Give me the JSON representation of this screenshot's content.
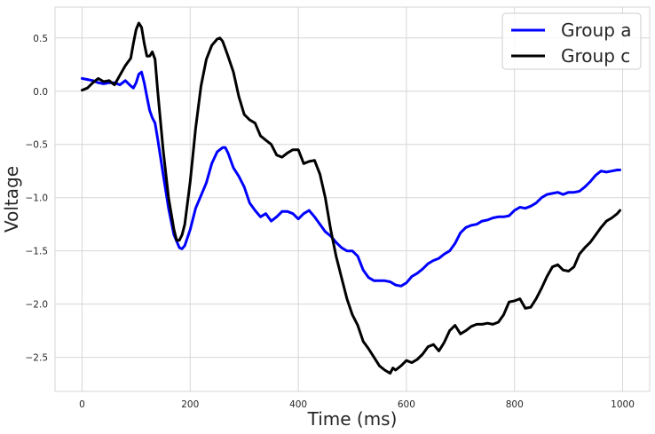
{
  "chart_data": {
    "type": "line",
    "title": "",
    "xlabel": "Time (ms)",
    "ylabel": "Voltage",
    "xlim": [
      -50,
      1050
    ],
    "ylim": [
      -2.82,
      0.79
    ],
    "xticks": [
      0,
      200,
      400,
      600,
      800,
      1000
    ],
    "yticks": [
      -2.5,
      -2.0,
      -1.5,
      -1.0,
      -0.5,
      0.0,
      0.5
    ],
    "xtick_labels": [
      "0",
      "200",
      "400",
      "600",
      "800",
      "1000"
    ],
    "ytick_labels": [
      "−2.5",
      "−2.0",
      "−1.5",
      "−1.0",
      "−0.5",
      "0.0",
      "0.5"
    ],
    "grid": true,
    "legend_position": "top-right",
    "series": [
      {
        "name": "Group a",
        "color": "#0000ff",
        "x": [
          0,
          10,
          20,
          30,
          40,
          50,
          60,
          70,
          80,
          90,
          95,
          100,
          105,
          110,
          115,
          120,
          125,
          130,
          135,
          140,
          150,
          160,
          170,
          180,
          185,
          190,
          200,
          210,
          220,
          230,
          240,
          250,
          260,
          265,
          270,
          280,
          290,
          300,
          310,
          320,
          330,
          340,
          350,
          360,
          370,
          380,
          390,
          400,
          410,
          420,
          430,
          440,
          450,
          460,
          470,
          480,
          490,
          500,
          510,
          520,
          530,
          540,
          550,
          560,
          570,
          580,
          590,
          600,
          610,
          620,
          630,
          640,
          650,
          660,
          670,
          680,
          690,
          700,
          710,
          720,
          730,
          740,
          750,
          760,
          770,
          780,
          790,
          800,
          810,
          820,
          830,
          840,
          850,
          860,
          870,
          880,
          890,
          900,
          910,
          920,
          930,
          940,
          950,
          960,
          970,
          980,
          990,
          995
        ],
        "y": [
          0.12,
          0.11,
          0.1,
          0.08,
          0.07,
          0.08,
          0.08,
          0.06,
          0.1,
          0.05,
          0.03,
          0.08,
          0.16,
          0.18,
          0.08,
          -0.05,
          -0.18,
          -0.25,
          -0.3,
          -0.45,
          -0.78,
          -1.1,
          -1.35,
          -1.47,
          -1.48,
          -1.45,
          -1.3,
          -1.1,
          -0.98,
          -0.86,
          -0.68,
          -0.57,
          -0.53,
          -0.53,
          -0.58,
          -0.72,
          -0.8,
          -0.9,
          -1.05,
          -1.12,
          -1.18,
          -1.15,
          -1.22,
          -1.18,
          -1.13,
          -1.13,
          -1.15,
          -1.2,
          -1.15,
          -1.12,
          -1.18,
          -1.25,
          -1.32,
          -1.36,
          -1.42,
          -1.47,
          -1.5,
          -1.5,
          -1.55,
          -1.68,
          -1.75,
          -1.78,
          -1.78,
          -1.78,
          -1.79,
          -1.82,
          -1.83,
          -1.8,
          -1.74,
          -1.71,
          -1.67,
          -1.62,
          -1.59,
          -1.57,
          -1.53,
          -1.5,
          -1.43,
          -1.33,
          -1.28,
          -1.26,
          -1.25,
          -1.22,
          -1.21,
          -1.19,
          -1.18,
          -1.18,
          -1.17,
          -1.12,
          -1.09,
          -1.1,
          -1.08,
          -1.05,
          -1.0,
          -0.97,
          -0.96,
          -0.95,
          -0.97,
          -0.95,
          -0.95,
          -0.94,
          -0.9,
          -0.85,
          -0.79,
          -0.75,
          -0.76,
          -0.75,
          -0.74,
          -0.74
        ]
      },
      {
        "name": "Group c",
        "color": "#000000",
        "x": [
          0,
          10,
          20,
          30,
          40,
          50,
          60,
          70,
          80,
          90,
          95,
          100,
          105,
          110,
          115,
          120,
          125,
          130,
          135,
          140,
          150,
          160,
          170,
          175,
          180,
          185,
          190,
          200,
          210,
          220,
          230,
          240,
          250,
          255,
          260,
          265,
          270,
          280,
          290,
          300,
          310,
          320,
          330,
          340,
          350,
          360,
          370,
          380,
          390,
          400,
          410,
          420,
          430,
          440,
          450,
          460,
          470,
          480,
          490,
          500,
          510,
          520,
          530,
          540,
          550,
          560,
          570,
          575,
          580,
          590,
          600,
          610,
          620,
          630,
          640,
          650,
          660,
          670,
          680,
          690,
          700,
          710,
          720,
          730,
          740,
          750,
          760,
          770,
          780,
          790,
          800,
          810,
          820,
          830,
          840,
          850,
          860,
          870,
          880,
          890,
          900,
          910,
          920,
          930,
          940,
          950,
          960,
          970,
          980,
          990,
          995
        ],
        "y": [
          0.01,
          0.03,
          0.08,
          0.12,
          0.09,
          0.1,
          0.06,
          0.15,
          0.24,
          0.31,
          0.45,
          0.58,
          0.64,
          0.6,
          0.45,
          0.33,
          0.33,
          0.37,
          0.3,
          0.0,
          -0.55,
          -1.0,
          -1.3,
          -1.4,
          -1.4,
          -1.35,
          -1.25,
          -0.85,
          -0.35,
          0.05,
          0.3,
          0.43,
          0.49,
          0.5,
          0.47,
          0.4,
          0.33,
          0.18,
          -0.05,
          -0.22,
          -0.27,
          -0.3,
          -0.42,
          -0.46,
          -0.5,
          -0.6,
          -0.62,
          -0.58,
          -0.55,
          -0.55,
          -0.68,
          -0.66,
          -0.65,
          -0.78,
          -1.0,
          -1.3,
          -1.55,
          -1.75,
          -1.95,
          -2.1,
          -2.2,
          -2.35,
          -2.42,
          -2.5,
          -2.58,
          -2.62,
          -2.65,
          -2.6,
          -2.62,
          -2.58,
          -2.53,
          -2.55,
          -2.52,
          -2.47,
          -2.4,
          -2.38,
          -2.44,
          -2.36,
          -2.25,
          -2.2,
          -2.28,
          -2.25,
          -2.21,
          -2.19,
          -2.19,
          -2.18,
          -2.19,
          -2.17,
          -2.1,
          -1.98,
          -1.97,
          -1.95,
          -2.04,
          -2.03,
          -1.95,
          -1.85,
          -1.74,
          -1.65,
          -1.63,
          -1.68,
          -1.69,
          -1.65,
          -1.53,
          -1.47,
          -1.42,
          -1.35,
          -1.28,
          -1.22,
          -1.19,
          -1.15,
          -1.12
        ]
      }
    ]
  }
}
